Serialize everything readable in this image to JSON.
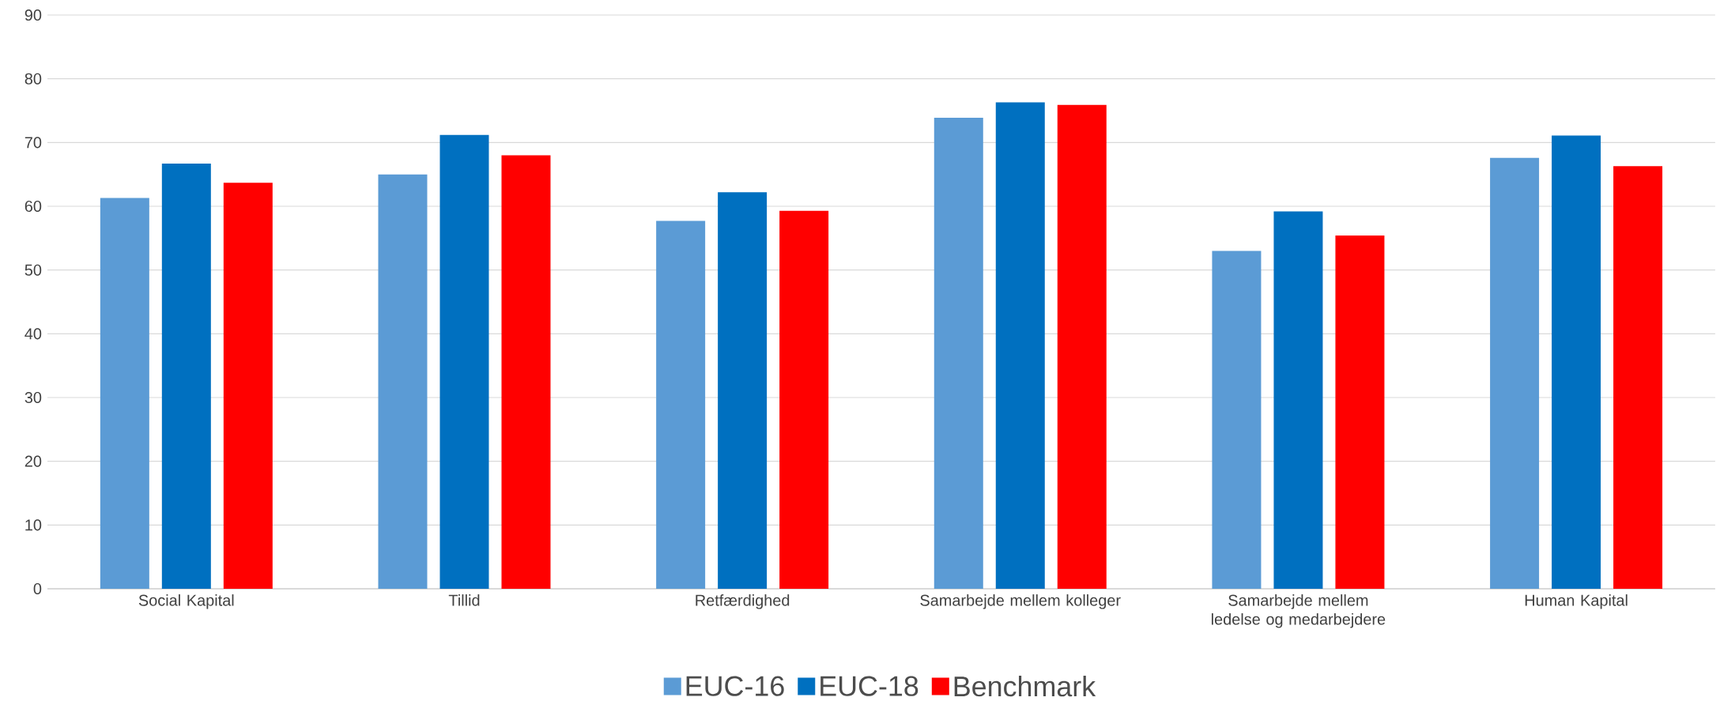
{
  "chart_data": {
    "type": "bar",
    "categories": [
      "Social Kapital",
      "Tillid",
      "Retfærdighed",
      "Samarbejde mellem kolleger",
      "Samarbejde mellem ledelse og medarbejdere",
      "Human Kapital"
    ],
    "series": [
      {
        "name": "EUC-16",
        "color": "#5b9bd5",
        "values": [
          61.3,
          65.0,
          57.7,
          73.9,
          53.0,
          67.6
        ]
      },
      {
        "name": "EUC-18",
        "color": "#0070c0",
        "values": [
          66.7,
          71.2,
          62.2,
          76.3,
          59.2,
          71.1
        ]
      },
      {
        "name": "Benchmark",
        "color": "#ff0000",
        "values": [
          63.7,
          68.0,
          59.3,
          75.9,
          55.4,
          66.3
        ]
      }
    ],
    "ylim": [
      0,
      90
    ],
    "yticks": [
      0,
      10,
      20,
      30,
      40,
      50,
      60,
      70,
      80,
      90
    ],
    "grid": "y",
    "legend": "bottom"
  }
}
